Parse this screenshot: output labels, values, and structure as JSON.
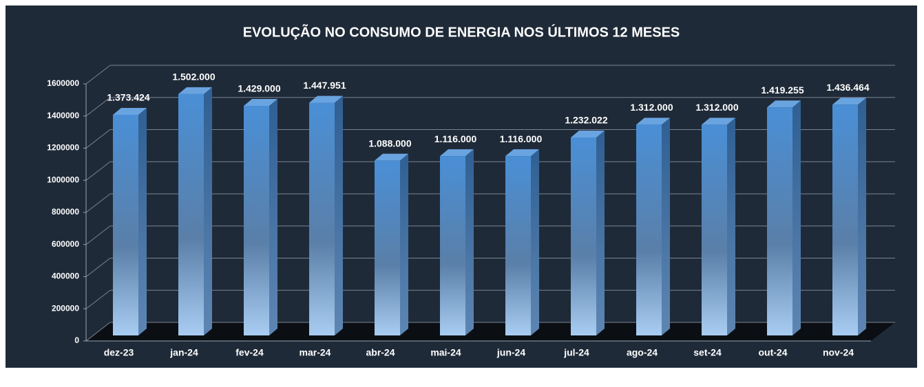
{
  "chart_data": {
    "type": "bar3d",
    "title": "EVOLUÇÃO NO CONSUMO DE ENERGIA NOS ÚLTIMOS 12 MESES",
    "categories": [
      "dez-23",
      "jan-24",
      "fev-24",
      "mar-24",
      "abr-24",
      "mai-24",
      "jun-24",
      "jul-24",
      "ago-24",
      "set-24",
      "out-24",
      "nov-24"
    ],
    "values": [
      1373424,
      1502000,
      1429000,
      1447951,
      1088000,
      1116000,
      1116000,
      1232022,
      1312000,
      1312000,
      1419255,
      1436464
    ],
    "value_labels": [
      "1.373.424",
      "1.502.000",
      "1.429.000",
      "1.447.951",
      "1.088.000",
      "1.116.000",
      "1.116.000",
      "1.232.022",
      "1.312.000",
      "1.312.000",
      "1.419.255",
      "1.436.464"
    ],
    "color": "#4a8fd6",
    "ylim": [
      0,
      1600000
    ],
    "yticks": [
      0,
      200000,
      400000,
      600000,
      800000,
      1000000,
      1200000,
      1400000,
      1600000
    ],
    "grid": true
  }
}
